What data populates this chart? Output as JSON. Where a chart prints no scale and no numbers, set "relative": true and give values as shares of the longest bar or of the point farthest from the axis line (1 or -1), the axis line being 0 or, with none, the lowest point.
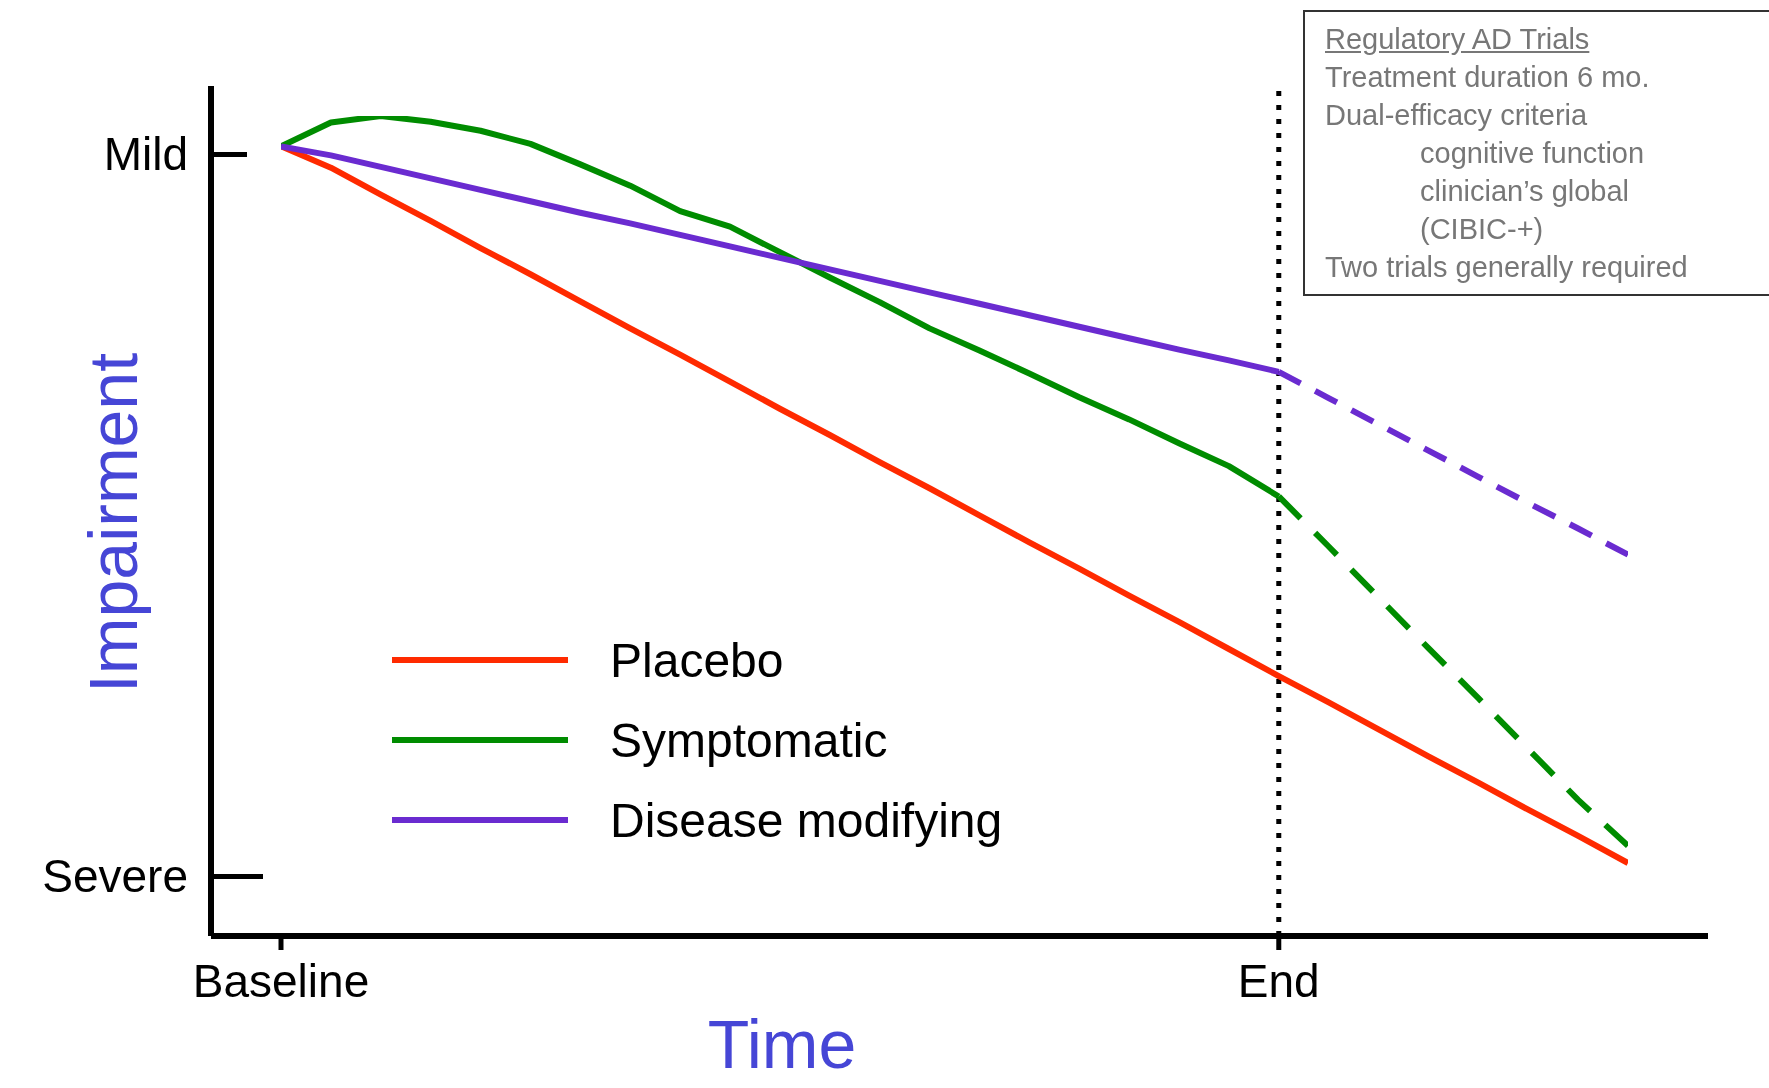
{
  "chart_data": {
    "type": "line",
    "xlabel": "Time",
    "ylabel": "Impairment",
    "relative": true,
    "categories": [
      "Baseline",
      null,
      null,
      null,
      null,
      null,
      null,
      null,
      null,
      null,
      null,
      null,
      null,
      null,
      null,
      null,
      null,
      null,
      null,
      null,
      "End",
      null,
      null,
      null,
      null,
      null,
      null,
      null
    ],
    "series": [
      {
        "name": "Placebo",
        "color": "#ff2a00",
        "values": [
          0.963,
          0.937,
          0.904,
          0.872,
          0.839,
          0.807,
          0.774,
          0.741,
          0.709,
          0.676,
          0.643,
          0.611,
          0.578,
          0.546,
          0.513,
          0.48,
          0.448,
          0.415,
          0.383,
          0.35,
          0.317,
          0.285,
          0.252,
          0.219,
          0.187,
          0.154,
          0.122,
          0.089
        ]
      },
      {
        "name": "Symptomatic",
        "color": "#008c00",
        "values": [
          0.963,
          0.992,
          1,
          0.993,
          0.982,
          0.966,
          0.941,
          0.915,
          0.884,
          0.865,
          0.834,
          0.803,
          0.773,
          0.741,
          0.714,
          0.686,
          0.657,
          0.63,
          0.601,
          0.573,
          0.536,
          null,
          null,
          null,
          null,
          null,
          null,
          null
        ]
      },
      {
        "name": "Disease modifying",
        "color": "#6a2bd0",
        "values": [
          0.963,
          0.952,
          0.938,
          0.924,
          0.91,
          0.896,
          0.882,
          0.869,
          0.855,
          0.841,
          0.827,
          0.813,
          0.799,
          0.785,
          0.771,
          0.757,
          0.743,
          0.729,
          0.715,
          0.702,
          0.688,
          null,
          null,
          null,
          null,
          null,
          null,
          null
        ]
      },
      {
        "color": "#008c00",
        "line_style": "dashed",
        "values": [
          null,
          null,
          null,
          null,
          null,
          null,
          null,
          null,
          null,
          null,
          null,
          null,
          null,
          null,
          null,
          null,
          null,
          null,
          null,
          null,
          0.536,
          0.475,
          0.413,
          0.351,
          0.29,
          0.228,
          0.166,
          0.11
        ]
      },
      {
        "color": "#6a2bd0",
        "line_style": "dashed",
        "values": [
          null,
          null,
          null,
          null,
          null,
          null,
          null,
          null,
          null,
          null,
          null,
          null,
          null,
          null,
          null,
          null,
          null,
          null,
          null,
          null,
          0.688,
          0.656,
          0.624,
          0.592,
          0.56,
          0.528,
          0.497,
          0.465
        ]
      }
    ],
    "ref_lines": [
      {
        "axis": "x",
        "value": "End",
        "color": "#000000",
        "line_style": "dotted"
      }
    ],
    "marker": "none",
    "legend": "bottom left",
    "line_style": "solid",
    "annotations": [
      "Mild",
      "Severe",
      "Regulatory AD Trials",
      "Treatment duration 6 mo.",
      "Dual-efficacy criteria",
      "cognitive function",
      "clinician’s global",
      "(CIBIC-+)",
      "Two trials generally required"
    ]
  }
}
